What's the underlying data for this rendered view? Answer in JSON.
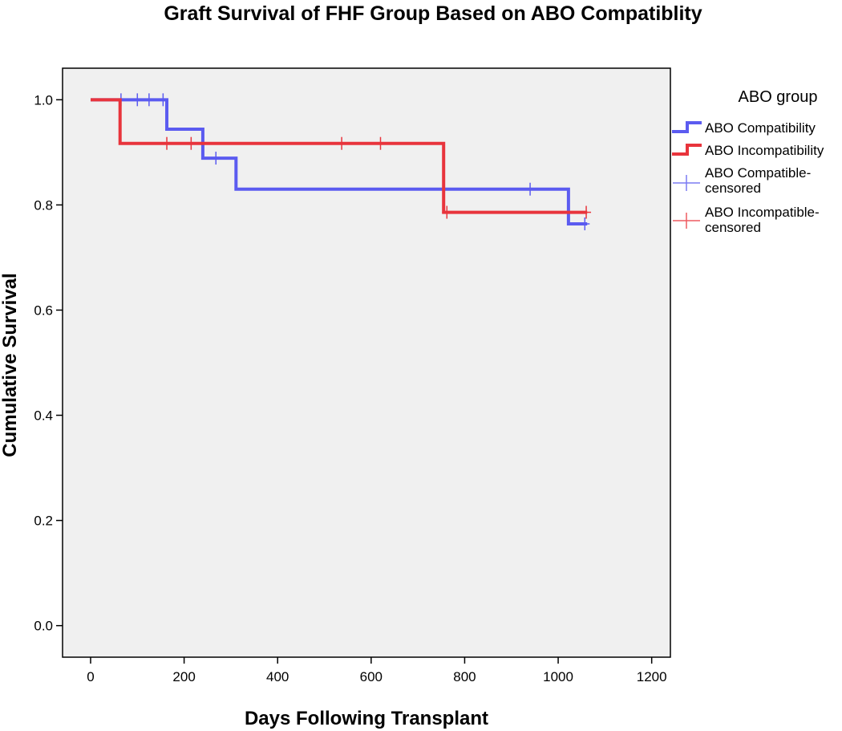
{
  "chart_data": {
    "type": "line",
    "subtype": "kaplan-meier step",
    "title": "Graft Survival of FHF Group Based on ABO Compatiblity",
    "xlabel": "Days Following Transplant",
    "ylabel": "Cumulative Survival",
    "xlim": [
      -60,
      1240
    ],
    "ylim": [
      -0.06,
      1.06
    ],
    "xticks": [
      0,
      200,
      400,
      600,
      800,
      1000,
      1200
    ],
    "yticks": [
      0.0,
      0.2,
      0.4,
      0.6,
      0.8,
      1.0
    ],
    "xtick_labels": [
      "0",
      "200",
      "400",
      "600",
      "800",
      "1000",
      "1200"
    ],
    "ytick_labels": [
      "0.0",
      "0.2",
      "0.4",
      "0.6",
      "0.8",
      "1.0"
    ],
    "grid": false,
    "legend": {
      "title": "ABO group",
      "position": "right",
      "entries": [
        {
          "label": "ABO Compatibility",
          "kind": "line",
          "color": "#5b5bf0"
        },
        {
          "label": "ABO Incompatibility",
          "kind": "line",
          "color": "#e8343c"
        },
        {
          "label_lines": [
            "ABO Compatible-",
            "censored"
          ],
          "kind": "censor",
          "color": "#7b7bf2"
        },
        {
          "label_lines": [
            "ABO Incompatible-",
            "censored"
          ],
          "kind": "censor",
          "color": "#ee5a60"
        }
      ]
    },
    "series": [
      {
        "name": "ABO Compatibility",
        "color": "#5b5bf0",
        "steps": [
          [
            0,
            1.0
          ],
          [
            163,
            0.944
          ],
          [
            240,
            0.889
          ],
          [
            311,
            0.83
          ],
          [
            1022,
            0.764
          ],
          [
            1062,
            0.764
          ]
        ],
        "censored": [
          [
            65,
            1.0
          ],
          [
            100,
            1.0
          ],
          [
            125,
            1.0
          ],
          [
            155,
            1.0
          ],
          [
            268,
            0.889
          ],
          [
            940,
            0.83
          ],
          [
            1057,
            0.764
          ]
        ]
      },
      {
        "name": "ABO Incompatibility",
        "color": "#e8343c",
        "steps": [
          [
            0,
            1.0
          ],
          [
            63,
            0.917
          ],
          [
            755,
            0.786
          ],
          [
            1062,
            0.786
          ]
        ],
        "censored": [
          [
            163,
            0.917
          ],
          [
            215,
            0.917
          ],
          [
            537,
            0.917
          ],
          [
            620,
            0.917
          ],
          [
            762,
            0.786
          ],
          [
            1060,
            0.786
          ]
        ]
      }
    ]
  }
}
